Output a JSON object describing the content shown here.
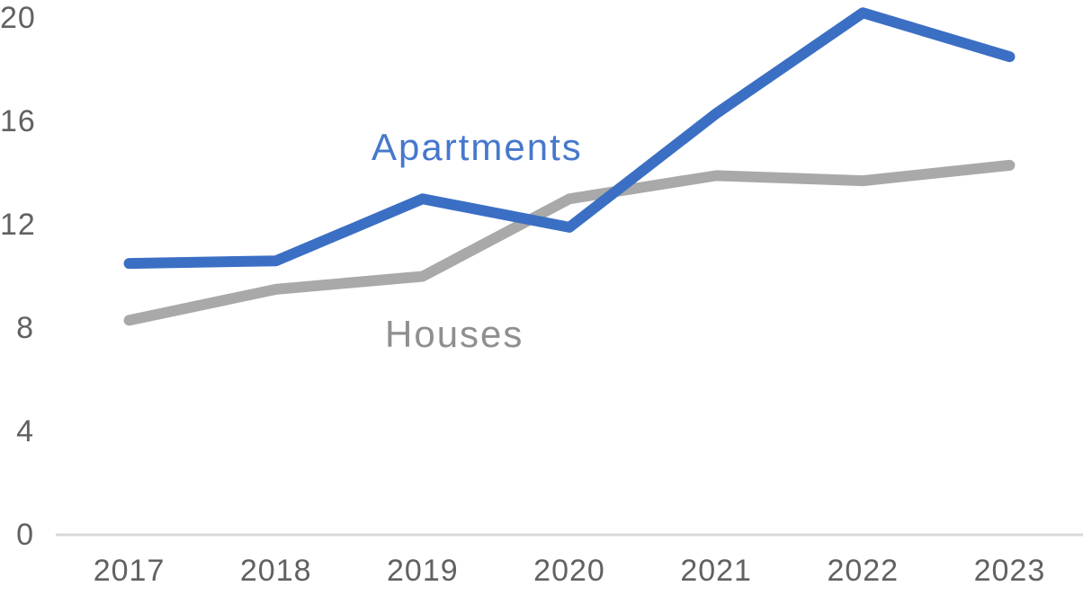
{
  "chart_data": {
    "type": "line",
    "categories": [
      "2017",
      "2018",
      "2019",
      "2020",
      "2021",
      "2022",
      "2023"
    ],
    "series": [
      {
        "name": "Apartments",
        "values": [
          10.5,
          10.6,
          13.0,
          11.9,
          16.3,
          20.2,
          18.5
        ],
        "color": "#3B6FC4",
        "label_color": "#4678CC"
      },
      {
        "name": "Houses",
        "values": [
          8.3,
          9.5,
          10.0,
          13.0,
          13.9,
          13.7,
          14.3
        ],
        "color": "#A9A9A9",
        "label_color": "#8F8F8F"
      }
    ],
    "y_axis": {
      "ticks": [
        0,
        4,
        8,
        12,
        16,
        20
      ],
      "range": [
        0,
        20
      ],
      "tick_color": "#616161"
    },
    "x_axis": {
      "tick_color": "#616161",
      "baseline_color": "#D9D9D9"
    },
    "grid": false,
    "legend_position": "inline-series-labels"
  }
}
